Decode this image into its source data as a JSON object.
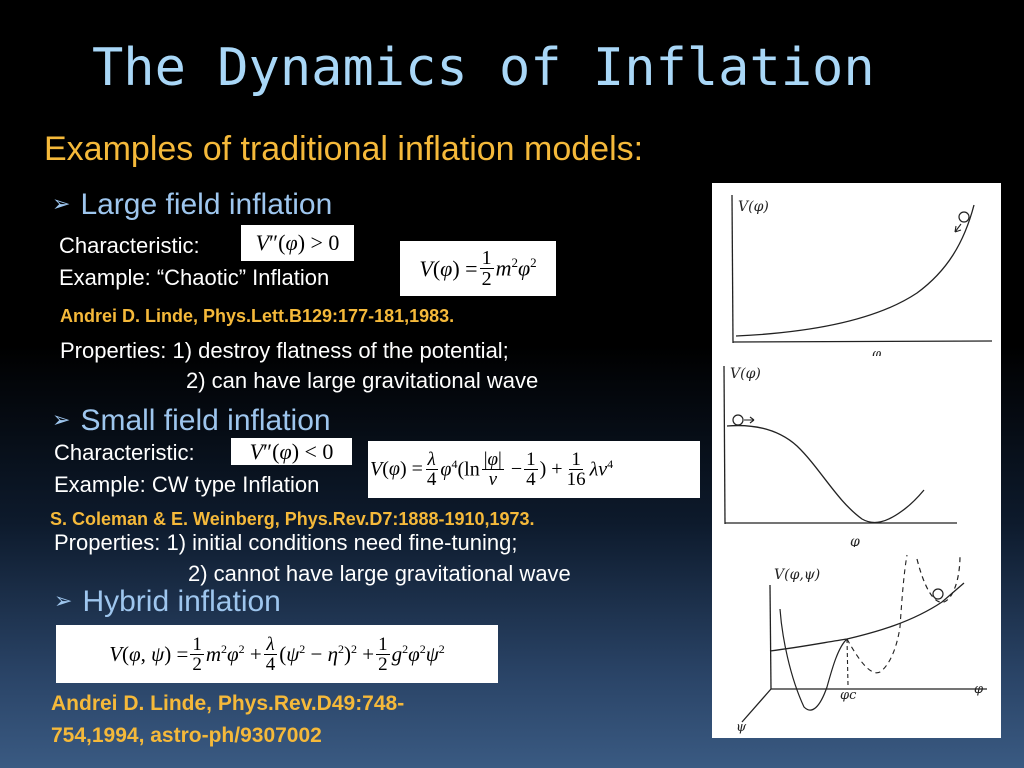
{
  "slide": {
    "title": "The Dynamics of Inflation",
    "subtitle": "Examples of traditional inflation models:",
    "bullet_arrow": "➢",
    "large_field": {
      "heading": "Large field inflation",
      "characteristic_label": "Characteristic:",
      "characteristic_eq": "V''(φ) > 0",
      "example": "Example: “Chaotic” Inflation",
      "example_eq": "V(φ) = 1/2 m²φ²",
      "reference": "Andrei D. Linde, Phys.Lett.B129:177-181,1983.",
      "properties_1": "Properties: 1) destroy flatness of the potential;",
      "properties_2": "2) can have large gravitational wave"
    },
    "small_field": {
      "heading": "Small field inflation",
      "characteristic_label": "Characteristic:",
      "characteristic_eq": "V''(φ) < 0",
      "example": "Example: CW type Inflation",
      "example_eq": "V(φ) = λ/4 φ⁴(ln |φ|/v − 1/4) + 1/16 λv⁴",
      "reference": "S. Coleman & E. Weinberg, Phys.Rev.D7:1888-1910,1973.",
      "properties_1": "Properties: 1) initial conditions need fine-tuning;",
      "properties_2": "2) cannot have large gravitational wave"
    },
    "hybrid": {
      "heading": "Hybrid inflation",
      "eq": "V(φ,ψ) = 1/2 m²φ² + λ/4 (ψ² − η²)² + 1/2 g²φ²ψ²",
      "reference": "Andrei D. Linde, Phys.Rev.D49:748-754,1994, astro-ph/9307002"
    },
    "sketches": {
      "top": {
        "y_label": "V(φ)",
        "x_label": "φ"
      },
      "middle": {
        "y_label": "V(φ)",
        "x_label": "φ"
      },
      "bottom": {
        "y_label": "V(φ,ψ)",
        "x_label": "φ",
        "z_label": "ψ",
        "critical_label": "φc"
      }
    }
  }
}
